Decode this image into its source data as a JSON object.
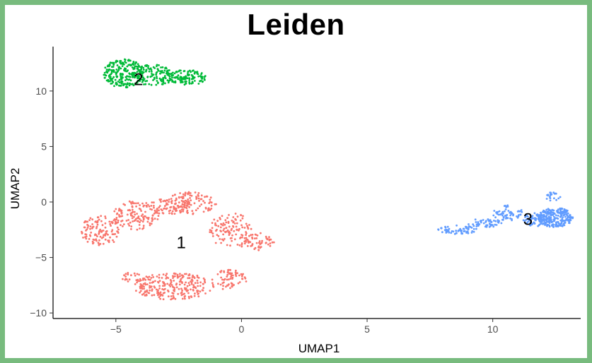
{
  "chart_data": {
    "type": "scatter",
    "title": "Leiden",
    "xlabel": "UMAP1",
    "ylabel": "UMAP2",
    "xlim": [
      -7.5,
      13.5
    ],
    "ylim": [
      -10.5,
      14.0
    ],
    "x_ticks": [
      -5,
      0,
      5,
      10
    ],
    "y_ticks": [
      -10,
      -5,
      0,
      5,
      10
    ],
    "x_tick_labels": [
      "−5",
      "0",
      "5",
      "10"
    ],
    "y_tick_labels": [
      "−10",
      "−5",
      "0",
      "5",
      "10"
    ],
    "grid": false,
    "legend": "none",
    "series": [
      {
        "name": "1",
        "color": "#f8766d",
        "label_position": [
          -2.4,
          -3.6
        ],
        "regions": [
          {
            "cx": -5.6,
            "cy": -2.6,
            "rx": 0.8,
            "ry": 1.4,
            "n": 120
          },
          {
            "cx": -4.2,
            "cy": -1.2,
            "rx": 1.0,
            "ry": 1.3,
            "n": 120
          },
          {
            "cx": -2.9,
            "cy": -0.4,
            "rx": 0.9,
            "ry": 0.7,
            "n": 80
          },
          {
            "cx": -2.0,
            "cy": -0.1,
            "rx": 1.0,
            "ry": 1.0,
            "n": 110
          },
          {
            "cx": -0.4,
            "cy": -2.6,
            "rx": 0.9,
            "ry": 1.6,
            "n": 120
          },
          {
            "cx": 0.7,
            "cy": -3.6,
            "rx": 0.6,
            "ry": 0.8,
            "n": 50
          },
          {
            "cx": -2.7,
            "cy": -7.6,
            "rx": 1.6,
            "ry": 1.2,
            "n": 260
          },
          {
            "cx": -0.5,
            "cy": -7.0,
            "rx": 0.7,
            "ry": 0.9,
            "n": 70
          },
          {
            "cx": -4.4,
            "cy": -6.8,
            "rx": 0.4,
            "ry": 0.5,
            "n": 20
          }
        ]
      },
      {
        "name": "2",
        "color": "#00ba38",
        "label_position": [
          -4.1,
          11.1
        ],
        "regions": [
          {
            "cx": -4.7,
            "cy": 11.6,
            "rx": 0.8,
            "ry": 1.3,
            "n": 230
          },
          {
            "cx": -3.5,
            "cy": 11.4,
            "rx": 0.8,
            "ry": 1.0,
            "n": 120
          },
          {
            "cx": -2.2,
            "cy": 11.2,
            "rx": 0.8,
            "ry": 0.7,
            "n": 120
          }
        ]
      },
      {
        "name": "3",
        "color": "#619cff",
        "label_position": [
          11.4,
          -1.5
        ],
        "regions": [
          {
            "cx": 8.6,
            "cy": -2.5,
            "rx": 0.8,
            "ry": 0.4,
            "n": 60
          },
          {
            "cx": 9.7,
            "cy": -1.9,
            "rx": 0.7,
            "ry": 0.4,
            "n": 50
          },
          {
            "cx": 10.6,
            "cy": -1.0,
            "rx": 0.6,
            "ry": 0.7,
            "n": 60
          },
          {
            "cx": 11.7,
            "cy": -1.6,
            "rx": 0.5,
            "ry": 0.6,
            "n": 70
          },
          {
            "cx": 12.5,
            "cy": -1.4,
            "rx": 0.7,
            "ry": 0.9,
            "n": 230
          },
          {
            "cx": 12.4,
            "cy": 0.5,
            "rx": 0.3,
            "ry": 0.4,
            "n": 20
          }
        ]
      }
    ]
  }
}
